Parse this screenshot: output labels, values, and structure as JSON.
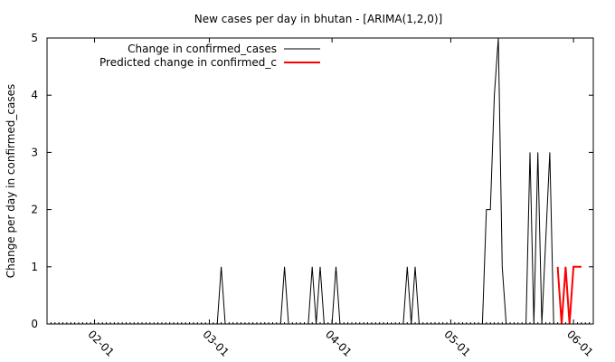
{
  "chart_data": {
    "type": "line",
    "title": "New cases per day in bhutan -  [ARIMA(1,2,0)]",
    "ylabel": "Change per day in confirmed_cases",
    "xlabel": "",
    "x_range": [
      "2020-01-20",
      "2020-06-06"
    ],
    "ylim": [
      0,
      5
    ],
    "y_ticks": [
      0,
      1,
      2,
      3,
      4,
      5
    ],
    "x_ticks": [
      {
        "date": "2020-02-01",
        "label": "02-01"
      },
      {
        "date": "2020-03-01",
        "label": "03-01"
      },
      {
        "date": "2020-04-01",
        "label": "04-01"
      },
      {
        "date": "2020-05-01",
        "label": "05-01"
      },
      {
        "date": "2020-06-01",
        "label": "06-01"
      }
    ],
    "grid": false,
    "legend_position": "top-left",
    "series": [
      {
        "name": "Change in confirmed_cases",
        "color": "#000000",
        "points": [
          [
            "2020-01-20",
            0
          ],
          [
            "2020-03-03",
            0
          ],
          [
            "2020-03-04",
            1
          ],
          [
            "2020-03-05",
            0
          ],
          [
            "2020-03-19",
            0
          ],
          [
            "2020-03-20",
            1
          ],
          [
            "2020-03-21",
            0
          ],
          [
            "2020-03-26",
            0
          ],
          [
            "2020-03-27",
            1
          ],
          [
            "2020-03-28",
            0
          ],
          [
            "2020-03-29",
            1
          ],
          [
            "2020-03-30",
            0
          ],
          [
            "2020-04-01",
            0
          ],
          [
            "2020-04-02",
            1
          ],
          [
            "2020-04-03",
            0
          ],
          [
            "2020-04-19",
            0
          ],
          [
            "2020-04-20",
            1
          ],
          [
            "2020-04-21",
            0
          ],
          [
            "2020-04-22",
            1
          ],
          [
            "2020-04-23",
            0
          ],
          [
            "2020-05-09",
            0
          ],
          [
            "2020-05-10",
            2
          ],
          [
            "2020-05-11",
            2
          ],
          [
            "2020-05-12",
            4
          ],
          [
            "2020-05-13",
            5
          ],
          [
            "2020-05-14",
            1
          ],
          [
            "2020-05-15",
            0
          ],
          [
            "2020-05-20",
            0
          ],
          [
            "2020-05-21",
            3
          ],
          [
            "2020-05-22",
            0
          ],
          [
            "2020-05-23",
            3
          ],
          [
            "2020-05-24",
            0
          ],
          [
            "2020-05-26",
            3
          ],
          [
            "2020-05-27",
            0
          ],
          [
            "2020-05-29",
            0
          ]
        ]
      },
      {
        "name": "Predicted change in confirmed_c",
        "color": "#ff0000",
        "points": [
          [
            "2020-05-28",
            1
          ],
          [
            "2020-05-29",
            0
          ],
          [
            "2020-05-30",
            1
          ],
          [
            "2020-05-31",
            0
          ],
          [
            "2020-06-01",
            1
          ],
          [
            "2020-06-02",
            1
          ],
          [
            "2020-06-03",
            1
          ]
        ]
      }
    ]
  }
}
